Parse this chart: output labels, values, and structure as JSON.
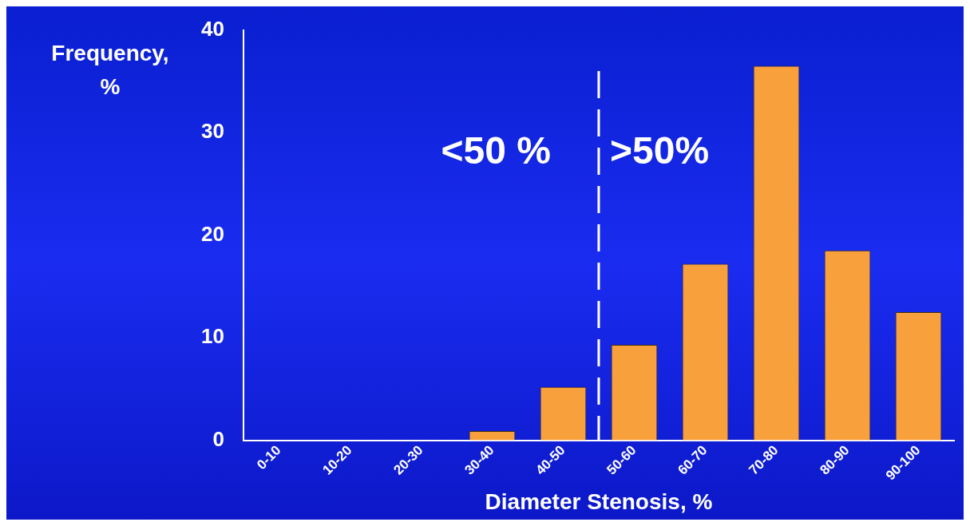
{
  "chart_data": {
    "type": "bar",
    "xlabel": "Diameter Stenosis, %",
    "ylabel": "Frequency, %",
    "categories": [
      "0-10",
      "10-20",
      "20-30",
      "30-40",
      "40-50",
      "50-60",
      "60-70",
      "70-80",
      "80-90",
      "90-100"
    ],
    "values": [
      0,
      0,
      0,
      0.9,
      5.2,
      9.3,
      17.2,
      36.5,
      18.5,
      12.5
    ],
    "color": "#f7a03c",
    "ylim": [
      0,
      40
    ],
    "yticks": [
      0,
      10,
      20,
      30,
      40
    ],
    "ref_lines": [
      {
        "axis": "x",
        "value": "50-60",
        "color": "#ffffff",
        "line_style": "dashed"
      }
    ],
    "annotations": [
      "<50 %",
      ">50%"
    ],
    "grid": false,
    "legend": false
  }
}
